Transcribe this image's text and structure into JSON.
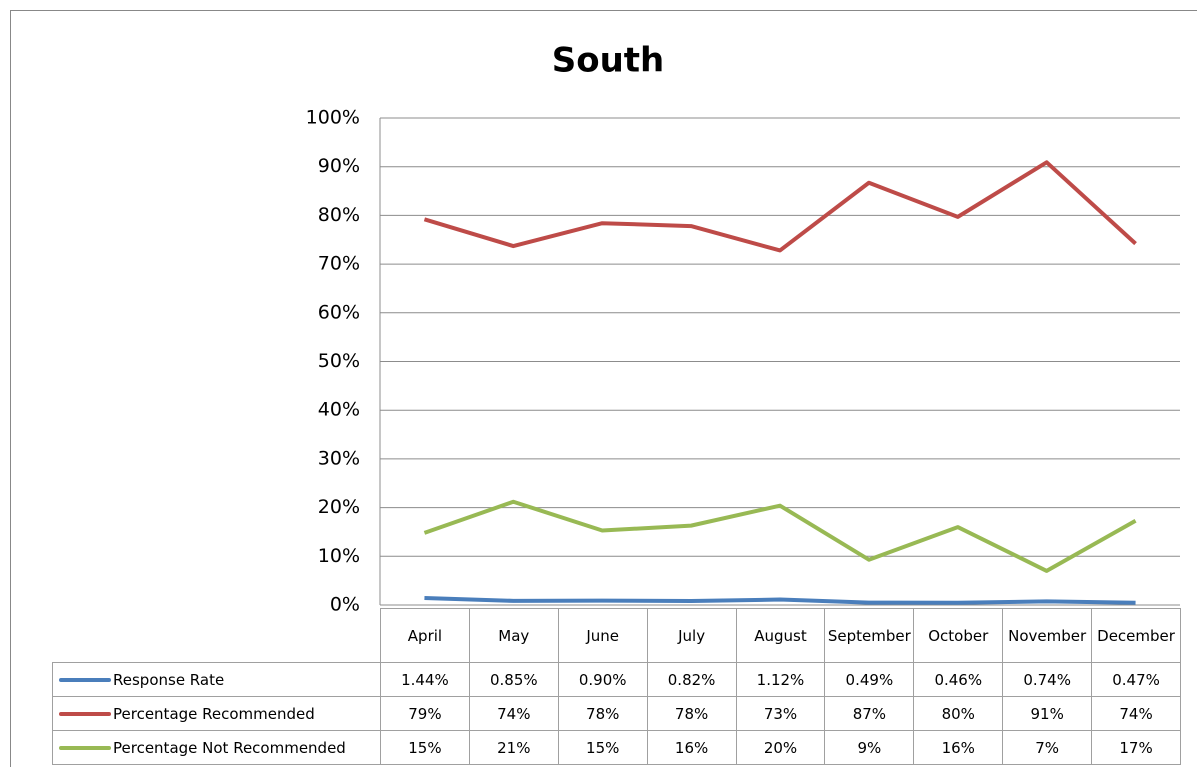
{
  "chart_data": {
    "type": "line",
    "title": "South",
    "categories": [
      "April",
      "May",
      "June",
      "July",
      "August",
      "September",
      "October",
      "November",
      "December"
    ],
    "series": [
      {
        "name": "Response Rate",
        "color": "#4a7ebb",
        "values": [
          1.44,
          0.85,
          0.9,
          0.82,
          1.12,
          0.49,
          0.46,
          0.74,
          0.47
        ],
        "value_labels": [
          "1.44%",
          "0.85%",
          "0.90%",
          "0.82%",
          "1.12%",
          "0.49%",
          "0.46%",
          "0.74%",
          "0.47%"
        ]
      },
      {
        "name": "Percentage Recommended",
        "color": "#be4b48",
        "values": [
          79.2,
          73.7,
          78.4,
          77.8,
          72.8,
          86.7,
          79.7,
          90.9,
          74.2
        ],
        "value_labels": [
          "79%",
          "74%",
          "78%",
          "78%",
          "73%",
          "87%",
          "80%",
          "91%",
          "74%"
        ]
      },
      {
        "name": "Percentage Not  Recommended",
        "color": "#98b954",
        "values": [
          14.8,
          21.2,
          15.3,
          16.3,
          20.4,
          9.3,
          16.0,
          7.0,
          17.3
        ],
        "value_labels": [
          "15%",
          "21%",
          "15%",
          "16%",
          "20%",
          "9%",
          "16%",
          "7%",
          "17%"
        ]
      }
    ],
    "ylim": [
      0,
      100
    ],
    "yticks": [
      {
        "value": 0,
        "label": "0%"
      },
      {
        "value": 10,
        "label": "10%"
      },
      {
        "value": 20,
        "label": "20%"
      },
      {
        "value": 30,
        "label": "30%"
      },
      {
        "value": 40,
        "label": "40%"
      },
      {
        "value": 50,
        "label": "50%"
      },
      {
        "value": 60,
        "label": "60%"
      },
      {
        "value": 70,
        "label": "70%"
      },
      {
        "value": 80,
        "label": "80%"
      },
      {
        "value": 90,
        "label": "90%"
      },
      {
        "value": 100,
        "label": "100%"
      }
    ],
    "grid": true
  }
}
